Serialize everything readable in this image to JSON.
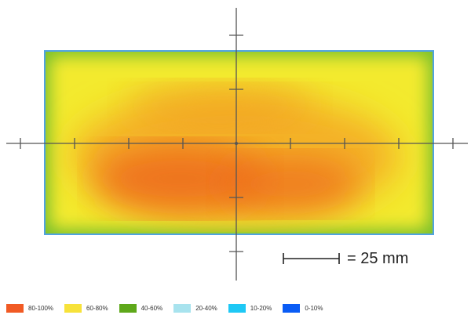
{
  "scale_bar": {
    "label": "= 25 mm"
  },
  "legend": [
    {
      "label": "80-100%",
      "color": "#F15A24"
    },
    {
      "label": "60-80%",
      "color": "#F7E23A"
    },
    {
      "label": "40-60%",
      "color": "#5EA81A"
    },
    {
      "label": "20-40%",
      "color": "#A8E3EE"
    },
    {
      "label": "10-20%",
      "color": "#1EC8F5"
    },
    {
      "label": "0-10%",
      "color": "#0A5CF5"
    }
  ],
  "colors": {
    "border_blue": "#4FA3E0",
    "edge_green": "#7CC12C",
    "mid_yellow": "#F3EA2E",
    "core_orange": "#EE6A1C",
    "axis": "#555555"
  }
}
